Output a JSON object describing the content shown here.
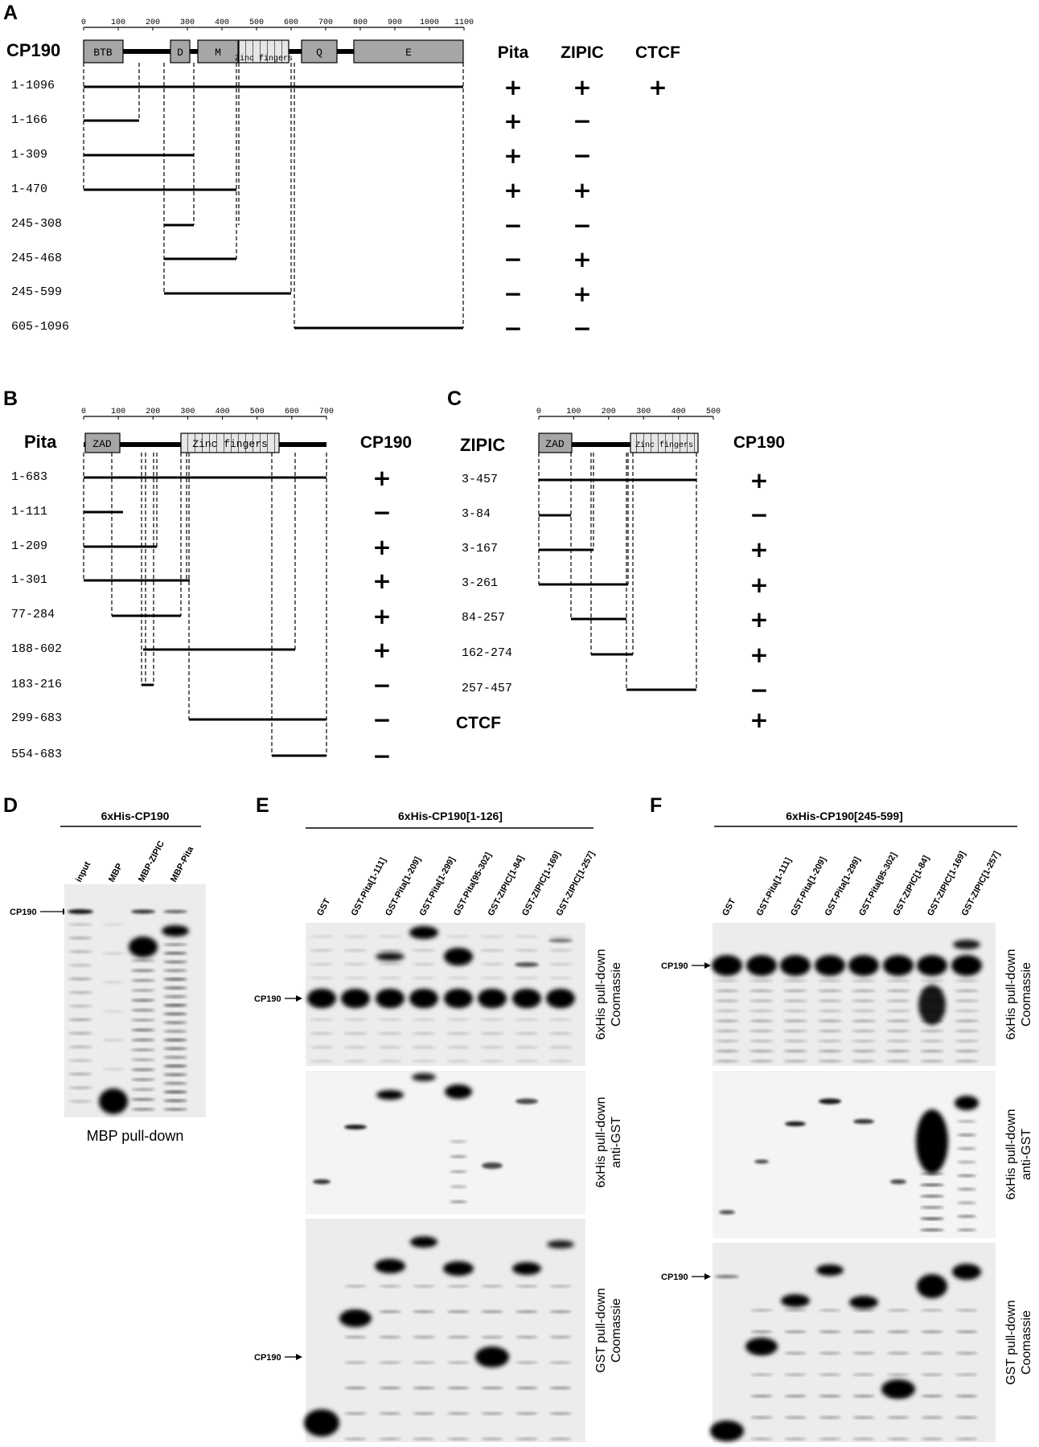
{
  "panel_a": {
    "label": "A",
    "protein": "CP190",
    "axis_ticks": [
      "0",
      "100",
      "200",
      "300",
      "400",
      "500",
      "600",
      "700",
      "800",
      "900",
      "1000",
      "1100"
    ],
    "domains": [
      "BTB",
      "D",
      "M",
      "Zinc fingers",
      "Q",
      "E"
    ],
    "col_headers": [
      "Pita",
      "ZIPIC",
      "CTCF"
    ],
    "rows": [
      {
        "label": "1-1096",
        "pita": "+",
        "zipic": "+",
        "ctcf": "+"
      },
      {
        "label": "1-166",
        "pita": "+",
        "zipic": "−",
        "ctcf": ""
      },
      {
        "label": "1-309",
        "pita": "+",
        "zipic": "−",
        "ctcf": ""
      },
      {
        "label": "1-470",
        "pita": "+",
        "zipic": "+",
        "ctcf": ""
      },
      {
        "label": "245-308",
        "pita": "−",
        "zipic": "−",
        "ctcf": ""
      },
      {
        "label": "245-468",
        "pita": "−",
        "zipic": "+",
        "ctcf": ""
      },
      {
        "label": "245-599",
        "pita": "−",
        "zipic": "+",
        "ctcf": ""
      },
      {
        "label": "605-1096",
        "pita": "−",
        "zipic": "−",
        "ctcf": ""
      }
    ]
  },
  "panel_b": {
    "label": "B",
    "protein": "Pita",
    "axis_ticks": [
      "0",
      "100",
      "200",
      "300",
      "400",
      "500",
      "600",
      "700"
    ],
    "domains": [
      "ZAD",
      "Zinc fingers"
    ],
    "col_header": "CP190",
    "rows": [
      {
        "label": "1-683",
        "result": "+"
      },
      {
        "label": "1-111",
        "result": "−"
      },
      {
        "label": "1-209",
        "result": "+"
      },
      {
        "label": "1-301",
        "result": "+"
      },
      {
        "label": "77-284",
        "result": "+"
      },
      {
        "label": "188-602",
        "result": "+"
      },
      {
        "label": "183-216",
        "result": "−"
      },
      {
        "label": "299-683",
        "result": "−"
      },
      {
        "label": "554-683",
        "result": "−"
      }
    ]
  },
  "panel_c": {
    "label": "C",
    "protein": "ZIPIC",
    "axis_ticks": [
      "0",
      "100",
      "200",
      "300",
      "400",
      "500"
    ],
    "domains": [
      "ZAD",
      "Zinc fingers"
    ],
    "col_header": "CP190",
    "rows": [
      {
        "label": "3-457",
        "result": "+"
      },
      {
        "label": "3-84",
        "result": "−"
      },
      {
        "label": "3-167",
        "result": "+"
      },
      {
        "label": "3-261",
        "result": "+"
      },
      {
        "label": "84-257",
        "result": "+"
      },
      {
        "label": "162-274",
        "result": "+"
      },
      {
        "label": "257-457",
        "result": "−"
      },
      {
        "label": "CTCF",
        "result": "+"
      }
    ]
  },
  "panel_d": {
    "label": "D",
    "header": "6xHis-CP190",
    "lanes": [
      "input",
      "MBP",
      "MBP-ZIPIC",
      "MBP-Pita"
    ],
    "marker": "CP190",
    "caption": "MBP pull-down"
  },
  "panel_e": {
    "label": "E",
    "header": "6xHis-CP190[1-126]",
    "lanes": [
      "GST",
      "GST-Pita[1-111]",
      "GST-Pita[1-209]",
      "GST-Pita[1-299]",
      "GST-Pita[95-302]",
      "GST-ZIPIC[1-84]",
      "GST-ZIPIC[1-169]",
      "GST-ZIPIC[1-257]"
    ],
    "marker": "CP190",
    "gel_labels": [
      [
        "6xHis pull-down",
        "Coomassie"
      ],
      [
        "6xHis pull-down",
        "anti-GST"
      ],
      [
        "GST pull-down",
        "Coomassie"
      ]
    ]
  },
  "panel_f": {
    "label": "F",
    "header": "6xHis-CP190[245-599]",
    "lanes": [
      "GST",
      "GST-Pita[1-111]",
      "GST-Pita[1-209]",
      "GST-Pita[1-299]",
      "GST-Pita[95-302]",
      "GST-ZIPIC[1-84]",
      "GST-ZIPIC[1-169]",
      "GST-ZIPIC[1-257]"
    ],
    "marker": "CP190",
    "gel_labels": [
      [
        "6xHis pull-down",
        "Coomassie"
      ],
      [
        "6xHis pull-down",
        "anti-GST"
      ],
      [
        "GST pull-down",
        "Coomassie"
      ]
    ]
  }
}
